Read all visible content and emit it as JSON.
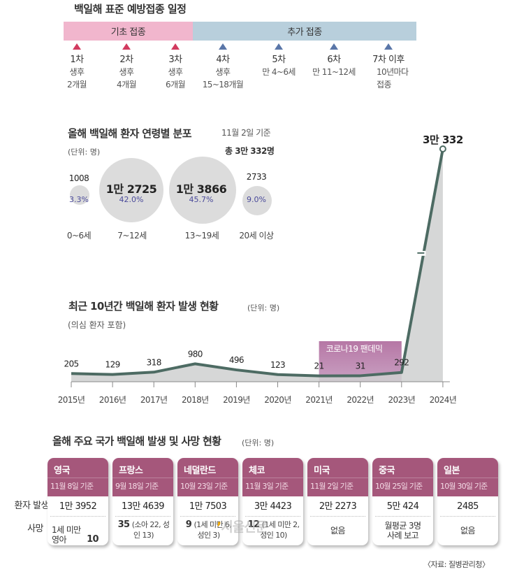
{
  "schedule": {
    "title": "백일해 표준 예방접종 일정",
    "basic_label": "기초 접종",
    "extra_label": "추가 접종",
    "doses": [
      {
        "num": "1차",
        "desc1": "생후",
        "desc2": "2개월",
        "group": "basic"
      },
      {
        "num": "2차",
        "desc1": "생후",
        "desc2": "4개월",
        "group": "basic"
      },
      {
        "num": "3차",
        "desc1": "생후",
        "desc2": "6개월",
        "group": "basic"
      },
      {
        "num": "4차",
        "desc1": "생후",
        "desc2": "15~18개월",
        "group": "extra"
      },
      {
        "num": "5차",
        "desc1": "만 4~6세",
        "desc2": "",
        "group": "extra"
      },
      {
        "num": "6차",
        "desc1": "만 11~12세",
        "desc2": "",
        "group": "extra"
      },
      {
        "num": "7차 이후",
        "desc1": "10년마다",
        "desc2": "접종",
        "group": "extra"
      }
    ],
    "colors": {
      "basic": "#f1b6cd",
      "extra": "#b8cfdc",
      "basic_marker": "#d23a5f",
      "extra_marker": "#5a76a8"
    }
  },
  "age_distribution": {
    "title": "올해 백일해 환자 연령별 분포",
    "unit": "(단위: 명)",
    "date": "11월 2일 기준",
    "total": "총 3만 332명",
    "groups": [
      {
        "label": "0~6세",
        "value": "1008",
        "percent": "3.3%"
      },
      {
        "label": "7~12세",
        "value": "1만 2725",
        "percent": "42.0%"
      },
      {
        "label": "13~19세",
        "value": "1만 3866",
        "percent": "45.7%"
      },
      {
        "label": "20세 이상",
        "value": "2733",
        "percent": "9.0%"
      }
    ]
  },
  "trend": {
    "title": "최근 10년간 백일해 환자 발생 현황",
    "unit": "(단위: 명)",
    "note": "(의심 환자 포함)",
    "pandemic_label": "코로나19 팬데믹",
    "peak_label": "3만 332"
  },
  "chart_data": {
    "type": "area",
    "title": "최근 10년간 백일해 환자 발생 현황",
    "subtitle": "(의심 환자 포함)",
    "xlabel": "",
    "ylabel": "(단위: 명)",
    "categories": [
      "2015년",
      "2016년",
      "2017년",
      "2018년",
      "2019년",
      "2020년",
      "2021년",
      "2022년",
      "2023년",
      "2024년"
    ],
    "values": [
      205,
      129,
      318,
      980,
      496,
      123,
      21,
      31,
      292,
      30332
    ],
    "value_labels": [
      "205",
      "129",
      "318",
      "980",
      "496",
      "123",
      "21",
      "31",
      "292",
      "3만 332"
    ],
    "axis_break": true,
    "grid": false,
    "annotations": [
      {
        "text": "코로나19 팬데믹",
        "from": "2021년",
        "to": "2023년"
      }
    ],
    "colors": {
      "line": "#4d6b63",
      "fill": "#cfd0d0",
      "pandemic": "#b677a5"
    }
  },
  "countries": {
    "title": "올해 주요 국가 백일해 발생 및 사망 현황",
    "unit": "(단위: 명)",
    "row_cases_label": "환자 발생",
    "row_deaths_label": "사망",
    "header_color": "#a5577b",
    "items": [
      {
        "name": "영국",
        "date": "11월 8일 기준",
        "cases": "1만 3952",
        "death_main": "10",
        "death_detail": "1세 미만 영아"
      },
      {
        "name": "프랑스",
        "date": "9월 18일 기준",
        "cases": "13만 4639",
        "death_main": "35",
        "death_detail": "(소아 22, 성인 13)"
      },
      {
        "name": "네덜란드",
        "date": "10월 23일 기준",
        "cases": "1만 7503",
        "death_main": "9",
        "death_detail": "(1세 미만 6, 성인 3)"
      },
      {
        "name": "체코",
        "date": "11월 3일 기준",
        "cases": "3만 4423",
        "death_main": "12",
        "death_detail": "(1세 미만 2, 성인 10)"
      },
      {
        "name": "미국",
        "date": "11월 2일 기준",
        "cases": "2만 2273",
        "death_main": "없음",
        "death_detail": ""
      },
      {
        "name": "중국",
        "date": "10월 25일 기준",
        "cases": "5만 424",
        "death_main": "월평균 3명 사례 보고",
        "death_detail": ""
      },
      {
        "name": "일본",
        "date": "10월 30일 기준",
        "cases": "2485",
        "death_main": "없음",
        "death_detail": ""
      }
    ]
  },
  "footer": {
    "source": "〈자료: 질병관리청〉",
    "watermark": "서울신문"
  }
}
